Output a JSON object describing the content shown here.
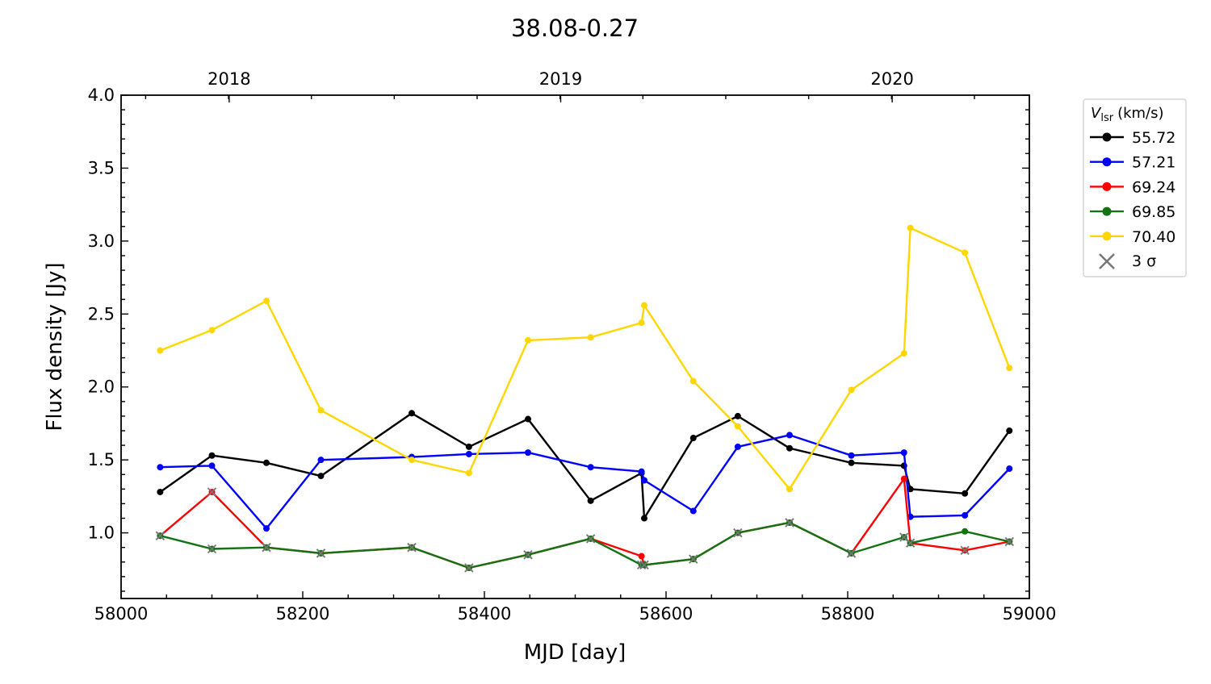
{
  "chart_data": {
    "type": "line",
    "title": "38.08-0.27",
    "xlabel": "MJD [day]",
    "ylabel": "Flux density [Jy]",
    "xlim": [
      58000,
      59000
    ],
    "ylim": [
      0.55,
      4.0
    ],
    "x_ticks": [
      "58000",
      "58200",
      "58400",
      "58600",
      "58800",
      "59000"
    ],
    "y_ticks": [
      "1.0",
      "1.5",
      "2.0",
      "2.5",
      "3.0",
      "3.5",
      "4.0"
    ],
    "top_axis_ticks": [
      {
        "label": "2018",
        "mjd": 58119
      },
      {
        "label": "2019",
        "mjd": 58484
      },
      {
        "label": "2020",
        "mjd": 58849
      }
    ],
    "legend_title_main": "V",
    "legend_title_sub": "lsr",
    "legend_title_unit": "(km/s)",
    "legend_placement": "outside-right",
    "sigma_label": "3 σ",
    "sigma_color": "#777777",
    "series": [
      {
        "name": "55.72",
        "color": "#000000",
        "x": [
          58043,
          58100,
          58160,
          58220,
          58320,
          58383,
          58448,
          58517,
          58573,
          58576,
          58630,
          58679,
          58736,
          58804,
          58862,
          58869,
          58929,
          58978
        ],
        "y": [
          1.28,
          1.53,
          1.48,
          1.39,
          1.82,
          1.59,
          1.78,
          1.22,
          1.41,
          1.1,
          1.65,
          1.8,
          1.58,
          1.48,
          1.46,
          1.3,
          1.27,
          1.7
        ],
        "upper_limit": []
      },
      {
        "name": "57.21",
        "color": "#0000ff",
        "x": [
          58043,
          58100,
          58160,
          58220,
          58320,
          58383,
          58448,
          58517,
          58573,
          58576,
          58630,
          58679,
          58736,
          58804,
          58862,
          58869,
          58929,
          58978
        ],
        "y": [
          1.45,
          1.46,
          1.03,
          1.5,
          1.52,
          1.54,
          1.55,
          1.45,
          1.42,
          1.36,
          1.15,
          1.59,
          1.67,
          1.53,
          1.55,
          1.11,
          1.12,
          1.44
        ],
        "upper_limit": []
      },
      {
        "name": "69.24",
        "color": "#ff0000",
        "x": [
          58043,
          58100,
          58160,
          58220,
          58320,
          58383,
          58448,
          58517,
          58573,
          58576,
          58630,
          58679,
          58736,
          58804,
          58862,
          58869,
          58929,
          58978
        ],
        "y": [
          0.98,
          1.28,
          0.9,
          0.86,
          0.9,
          0.76,
          0.85,
          0.96,
          0.84,
          0.78,
          0.82,
          1.0,
          1.07,
          0.86,
          1.37,
          0.93,
          0.88,
          0.94
        ],
        "upper_limit": [
          0,
          1,
          2,
          3,
          4,
          5,
          6,
          7,
          9,
          10,
          11,
          12,
          13,
          15,
          16,
          17
        ]
      },
      {
        "name": "69.85",
        "color": "#137213",
        "x": [
          58043,
          58100,
          58160,
          58220,
          58320,
          58383,
          58448,
          58517,
          58573,
          58576,
          58630,
          58679,
          58736,
          58804,
          58862,
          58869,
          58929,
          58978
        ],
        "y": [
          0.98,
          0.89,
          0.9,
          0.86,
          0.9,
          0.76,
          0.85,
          0.96,
          0.78,
          0.78,
          0.82,
          1.0,
          1.07,
          0.86,
          0.97,
          0.93,
          1.01,
          0.94
        ],
        "upper_limit": [
          0,
          1,
          2,
          3,
          4,
          5,
          6,
          7,
          8,
          9,
          10,
          11,
          12,
          13,
          14,
          15,
          17
        ]
      },
      {
        "name": "70.40",
        "color": "#ffd700",
        "x": [
          58043,
          58100,
          58160,
          58220,
          58320,
          58383,
          58448,
          58517,
          58573,
          58576,
          58630,
          58679,
          58736,
          58804,
          58862,
          58869,
          58929,
          58978
        ],
        "y": [
          2.25,
          2.39,
          2.59,
          1.84,
          1.5,
          1.41,
          2.32,
          2.34,
          2.44,
          2.56,
          2.04,
          1.73,
          1.3,
          1.98,
          2.23,
          3.09,
          2.92,
          2.13
        ],
        "upper_limit": []
      }
    ]
  }
}
